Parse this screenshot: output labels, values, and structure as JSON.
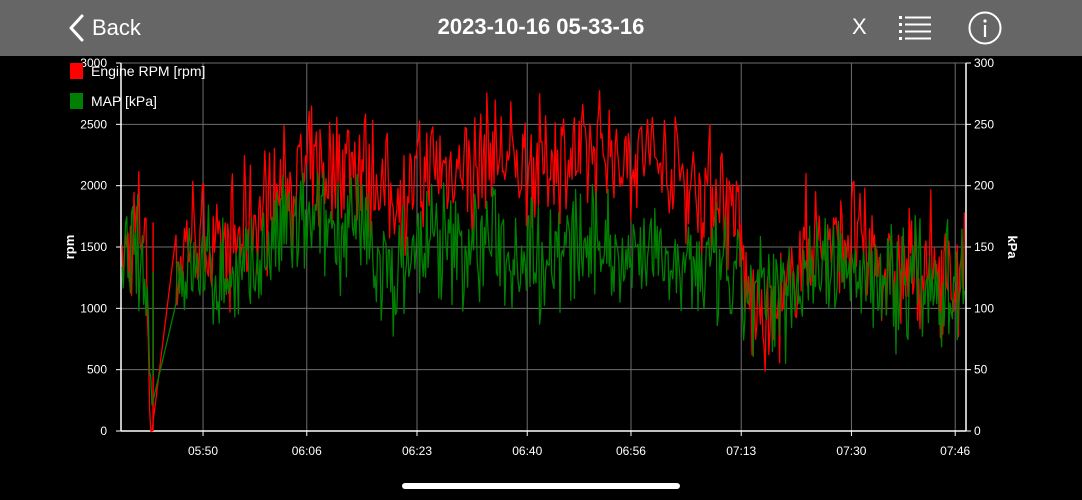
{
  "nav": {
    "back_label": "Back",
    "title": "2023-10-16 05-33-16",
    "close_label": "X"
  },
  "icons": {
    "back": "chevron-left-icon",
    "list": "list-icon",
    "info": "info-icon"
  },
  "colors": {
    "topbar": "#666666",
    "background": "#000000",
    "rpm": "#ff0000",
    "map": "#008000",
    "grid": "#6e6e6e"
  },
  "chart_data": {
    "type": "line",
    "ylabel": "rpm",
    "y2label": "kPa",
    "ylim": [
      0,
      3000
    ],
    "y2lim": [
      0,
      300
    ],
    "yticks": [
      "0",
      "500",
      "1000",
      "1500",
      "2000",
      "2500",
      "3000"
    ],
    "y2ticks": [
      "0",
      "50",
      "100",
      "150",
      "200",
      "250",
      "300"
    ],
    "xticks": [
      "05:50",
      "06:06",
      "06:23",
      "06:40",
      "06:56",
      "07:13",
      "07:30",
      "07:46"
    ],
    "xrange": [
      "05:37",
      "07:47"
    ],
    "grid": true,
    "legend_position": "top-left",
    "series": [
      {
        "name": "Engine RPM [rpm]",
        "axis": "left",
        "x": [
          "05:37",
          "05:39",
          "05:41",
          "05:42",
          "05:44",
          "05:46",
          "05:48",
          "05:50",
          "05:52",
          "05:54",
          "05:56",
          "05:58",
          "06:00",
          "06:02",
          "06:04",
          "06:06",
          "06:08",
          "06:10",
          "06:12",
          "06:14",
          "06:16",
          "06:18",
          "06:20",
          "06:22",
          "06:24",
          "06:26",
          "06:28",
          "06:30",
          "06:32",
          "06:34",
          "06:36",
          "06:38",
          "06:40",
          "06:42",
          "06:44",
          "06:46",
          "06:48",
          "06:50",
          "06:52",
          "06:54",
          "06:56",
          "06:58",
          "07:00",
          "07:02",
          "07:04",
          "07:06",
          "07:08",
          "07:10",
          "07:12",
          "07:14",
          "07:16",
          "07:18",
          "07:20",
          "07:22",
          "07:24",
          "07:26",
          "07:28",
          "07:30",
          "07:32",
          "07:34",
          "07:36",
          "07:38",
          "07:40",
          "07:42",
          "07:44",
          "07:46",
          "07:47"
        ],
        "values": [
          1300,
          1550,
          1700,
          0,
          0,
          1300,
          1650,
          1550,
          1450,
          1500,
          1600,
          1750,
          1850,
          1950,
          2050,
          2050,
          2100,
          2150,
          2200,
          2250,
          2100,
          1950,
          1900,
          2000,
          2050,
          2150,
          2100,
          2200,
          2100,
          2300,
          2200,
          2150,
          2200,
          2150,
          2250,
          2200,
          2200,
          2250,
          2300,
          2200,
          2250,
          2250,
          2200,
          2100,
          2100,
          2000,
          2000,
          1950,
          1800,
          1100,
          900,
          900,
          1000,
          1450,
          1600,
          1500,
          1550,
          1650,
          1450,
          1400,
          1250,
          1300,
          1250,
          1350,
          1300,
          1200,
          1300
        ]
      },
      {
        "name": "MAP [kPa]",
        "axis": "right",
        "x": [
          "05:37",
          "05:39",
          "05:41",
          "05:42",
          "05:44",
          "05:46",
          "05:48",
          "05:50",
          "05:52",
          "05:54",
          "05:56",
          "05:58",
          "06:00",
          "06:02",
          "06:04",
          "06:06",
          "06:08",
          "06:10",
          "06:12",
          "06:14",
          "06:16",
          "06:18",
          "06:20",
          "06:22",
          "06:24",
          "06:26",
          "06:28",
          "06:30",
          "06:32",
          "06:34",
          "06:36",
          "06:38",
          "06:40",
          "06:42",
          "06:44",
          "06:46",
          "06:48",
          "06:50",
          "06:52",
          "06:54",
          "06:56",
          "06:58",
          "07:00",
          "07:02",
          "07:04",
          "07:06",
          "07:08",
          "07:10",
          "07:12",
          "07:14",
          "07:16",
          "07:18",
          "07:20",
          "07:22",
          "07:24",
          "07:26",
          "07:28",
          "07:30",
          "07:32",
          "07:34",
          "07:36",
          "07:38",
          "07:40",
          "07:42",
          "07:44",
          "07:46",
          "07:47"
        ],
        "values": [
          120,
          135,
          130,
          45,
          45,
          125,
          130,
          130,
          125,
          125,
          120,
          130,
          150,
          160,
          165,
          160,
          165,
          170,
          165,
          160,
          145,
          130,
          125,
          140,
          150,
          155,
          145,
          150,
          145,
          160,
          150,
          145,
          150,
          145,
          150,
          145,
          150,
          145,
          155,
          145,
          150,
          150,
          145,
          140,
          135,
          135,
          130,
          125,
          120,
          110,
          110,
          110,
          115,
          130,
          135,
          130,
          130,
          135,
          125,
          130,
          120,
          125,
          120,
          125,
          120,
          115,
          125
        ]
      }
    ]
  }
}
